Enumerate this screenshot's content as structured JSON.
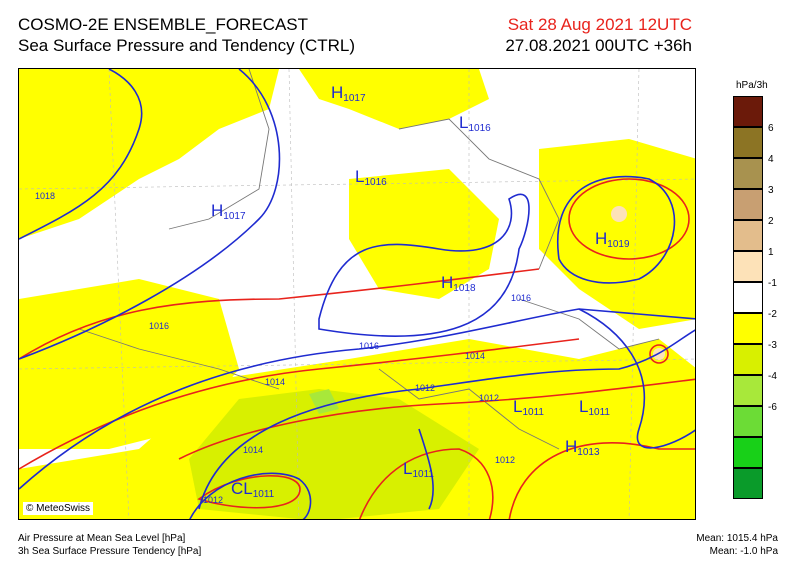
{
  "header": {
    "title_line1": "COSMO-2E ENSEMBLE_FORECAST",
    "title_line2": "Sea Surface Pressure and Tendency (CTRL)",
    "valid_time": "Sat 28 Aug 2021 12UTC",
    "run_time": "27.08.2021 00UTC +36h"
  },
  "map": {
    "credit": "© MeteoSwiss",
    "pressure_centers": [
      {
        "type": "H",
        "value": "1017"
      },
      {
        "type": "L",
        "value": "1016"
      },
      {
        "type": "L",
        "value": "1016"
      },
      {
        "type": "H",
        "value": "1017"
      },
      {
        "type": "H",
        "value": "1019"
      },
      {
        "type": "H",
        "value": "1018"
      },
      {
        "type": "L",
        "value": "1011"
      },
      {
        "type": "L",
        "value": "1011"
      },
      {
        "type": "H",
        "value": "1013"
      },
      {
        "type": "L",
        "value": "1011"
      },
      {
        "type": "CL",
        "value": "1011"
      }
    ],
    "isobar_labels": [
      "1018",
      "1016",
      "1016",
      "1016",
      "1014",
      "1014",
      "1014",
      "1012",
      "1012",
      "1012",
      "1012"
    ]
  },
  "legend": {
    "unit": "hPa/3h",
    "labels": [
      "6",
      "4",
      "3",
      "2",
      "1",
      "-1",
      "-2",
      "-3",
      "-4",
      "-6"
    ],
    "colors": [
      "#6b1a0a",
      "#8c7424",
      "#a8924f",
      "#c89f72",
      "#e3bd8c",
      "#fde2b8",
      "#ffffff",
      "#ffff00",
      "#d8f000",
      "#a8e83a",
      "#6cdc36",
      "#18d018",
      "#0a9b2a"
    ]
  },
  "footer": {
    "left_line1": "Air Pressure at Mean Sea Level [hPa]",
    "left_line2": "3h Sea Surface Pressure Tendency [hPa]",
    "right_line1": "Mean: 1015.4 hPa",
    "right_line2": "Mean:  -1.0 hPa"
  }
}
